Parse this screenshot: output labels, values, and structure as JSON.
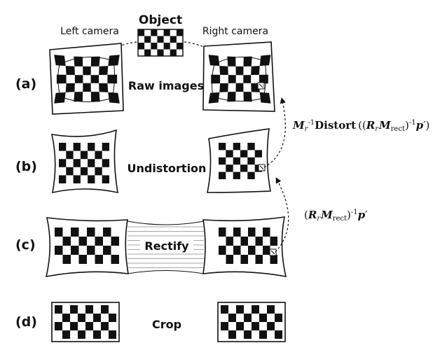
{
  "labels": {
    "object": "Object",
    "left_camera": "Left camera",
    "right_camera": "Right camera"
  },
  "rows": [
    {
      "letter": "(a)",
      "caption": "Raw images"
    },
    {
      "letter": "(b)",
      "caption": "Undistortion"
    },
    {
      "letter": "(c)",
      "caption": "Rectify"
    },
    {
      "letter": "(d)",
      "caption": "Crop"
    }
  ],
  "formulas": {
    "upper": {
      "m": "M",
      "r": "r",
      "inv": "-1",
      "distort": "Distort",
      "open": "((",
      "R": "R",
      "r2": "r",
      "M2": "M",
      "rect": "rect",
      "close": ")",
      "inv2": "-1",
      "p": "p",
      "tail": "′)"
    },
    "lower": {
      "open": "(",
      "R": "R",
      "r": "r",
      "M": "M",
      "rect": "rect",
      "close": ")",
      "inv": "-1",
      "p": "p",
      "tail": "′"
    }
  },
  "colors": {
    "ink": "#111111",
    "background": "#ffffff"
  }
}
